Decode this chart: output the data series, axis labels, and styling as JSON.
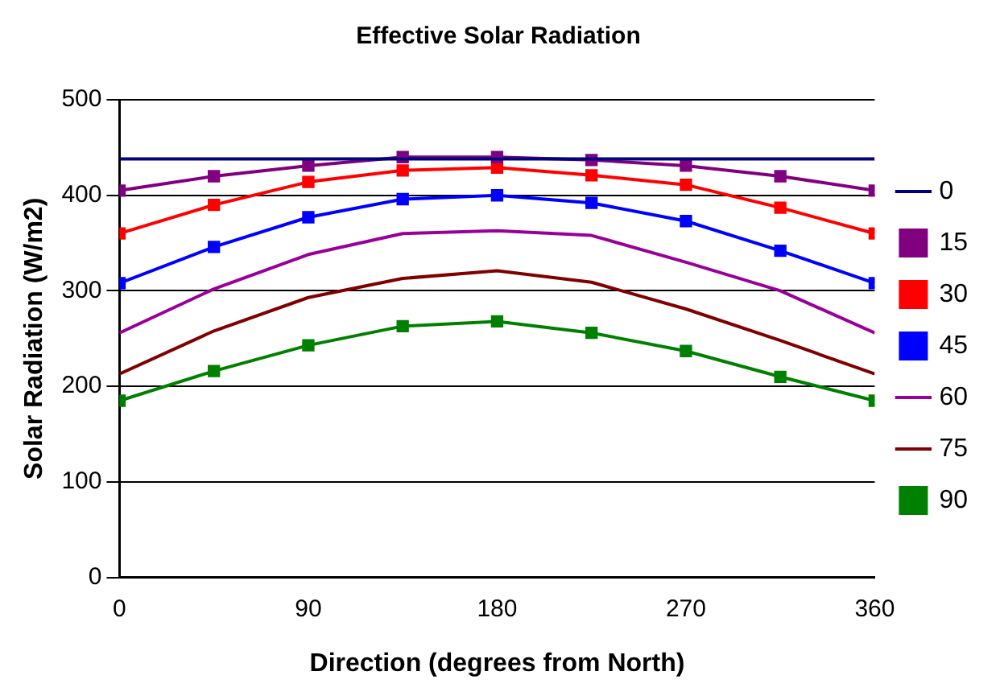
{
  "chart_data": {
    "type": "line",
    "title": "Effective Solar Radiation",
    "xlabel": "Direction (degrees from North)",
    "ylabel": "Solar Radiation (W/m2)",
    "x": [
      0,
      45,
      90,
      135,
      180,
      225,
      270,
      315,
      360
    ],
    "xlim": [
      0,
      360
    ],
    "xticks": [
      0,
      90,
      180,
      270,
      360
    ],
    "ylim": [
      0,
      500
    ],
    "yticks": [
      0,
      100,
      200,
      300,
      400,
      500
    ],
    "grid": "y",
    "legend": "right",
    "series": [
      {
        "name": "0",
        "color": "#000080",
        "marker": "none",
        "values": [
          438,
          438,
          438,
          438,
          438,
          438,
          438,
          438,
          438
        ]
      },
      {
        "name": "15",
        "color": "#800080",
        "marker": "square",
        "values": [
          405,
          420,
          431,
          440,
          440,
          437,
          431,
          420,
          405
        ]
      },
      {
        "name": "30",
        "color": "#ff0000",
        "marker": "square",
        "values": [
          360,
          390,
          414,
          426,
          429,
          421,
          411,
          387,
          360
        ]
      },
      {
        "name": "45",
        "color": "#0000ff",
        "marker": "square",
        "values": [
          308,
          346,
          377,
          396,
          400,
          392,
          373,
          342,
          308
        ]
      },
      {
        "name": "60",
        "color": "#990099",
        "marker": "none",
        "values": [
          256,
          302,
          338,
          360,
          363,
          358,
          330,
          300,
          256
        ]
      },
      {
        "name": "75",
        "color": "#800000",
        "marker": "none",
        "values": [
          213,
          258,
          293,
          313,
          321,
          309,
          281,
          248,
          213
        ]
      },
      {
        "name": "90",
        "color": "#008000",
        "marker": "square",
        "values": [
          185,
          216,
          243,
          263,
          268,
          256,
          237,
          210,
          185
        ]
      }
    ]
  }
}
